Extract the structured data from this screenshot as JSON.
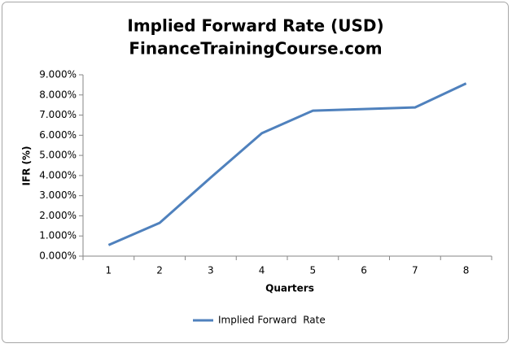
{
  "chart_data": {
    "type": "line",
    "title": "Implied Forward Rate (USD)",
    "subtitle": "FinanceTrainingCourse.com",
    "x_label": "Quarters",
    "y_label": "IFR (%)",
    "categories": [
      "1",
      "2",
      "3",
      "4",
      "5",
      "6",
      "7",
      "8"
    ],
    "series": [
      {
        "name": "Implied Forward  Rate",
        "color": "#4f81bd",
        "values": [
          0.55,
          1.65,
          3.9,
          6.1,
          7.22,
          7.3,
          7.38,
          8.57
        ]
      }
    ],
    "ylim": [
      0,
      9
    ],
    "yticks": [
      {
        "value": 0,
        "label": "0.000%"
      },
      {
        "value": 1,
        "label": "1.000%"
      },
      {
        "value": 2,
        "label": "2.000%"
      },
      {
        "value": 3,
        "label": "3.000%"
      },
      {
        "value": 4,
        "label": "4.000%"
      },
      {
        "value": 5,
        "label": "5.000%"
      },
      {
        "value": 6,
        "label": "6.000%"
      },
      {
        "value": 7,
        "label": "7.000%"
      },
      {
        "value": 8,
        "label": "8.000%"
      },
      {
        "value": 9,
        "label": "9.000%"
      }
    ],
    "grid": false,
    "legend": "bottom"
  }
}
